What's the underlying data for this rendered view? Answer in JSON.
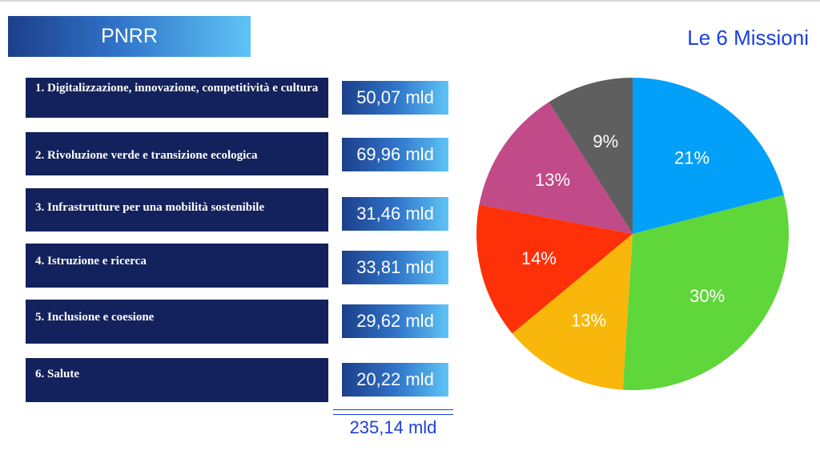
{
  "header": {
    "title": "PNRR",
    "subtitle": "Le 6 Missioni"
  },
  "missions": [
    {
      "label": "1. Digitalizzazione, innovazione, competitività e cultura",
      "amount": "50,07 mld"
    },
    {
      "label": "2. Rivoluzione verde e transizione ecologica",
      "amount": "69,96 mld"
    },
    {
      "label": "3. Infrastrutture per una mobilità sostenibile",
      "amount": "31,46 mld"
    },
    {
      "label": "4. Istruzione e ricerca",
      "amount": "33,81 mld"
    },
    {
      "label": "5. Inclusione e coesione",
      "amount": "29,62 mld"
    },
    {
      "label": "6. Salute",
      "amount": "20,22 mld"
    }
  ],
  "total": "235,14 mld",
  "chart_data": {
    "type": "pie",
    "title": "Le 6 Missioni",
    "slices": [
      {
        "label": "21%",
        "value": 21,
        "color": "#02a0f8"
      },
      {
        "label": "30%",
        "value": 30,
        "color": "#5fd63a"
      },
      {
        "label": "13%",
        "value": 13,
        "color": "#f8b70a"
      },
      {
        "label": "14%",
        "value": 14,
        "color": "#fe3008"
      },
      {
        "label": "13%",
        "value": 13,
        "color": "#c14a88"
      },
      {
        "label": "9%",
        "value": 9,
        "color": "#5f5f5f"
      }
    ],
    "start_angle_deg": 0,
    "direction": "clockwise",
    "legend": "none"
  },
  "colors": {
    "mission_box": "#13225c",
    "accent_text": "#1a3fe0"
  }
}
